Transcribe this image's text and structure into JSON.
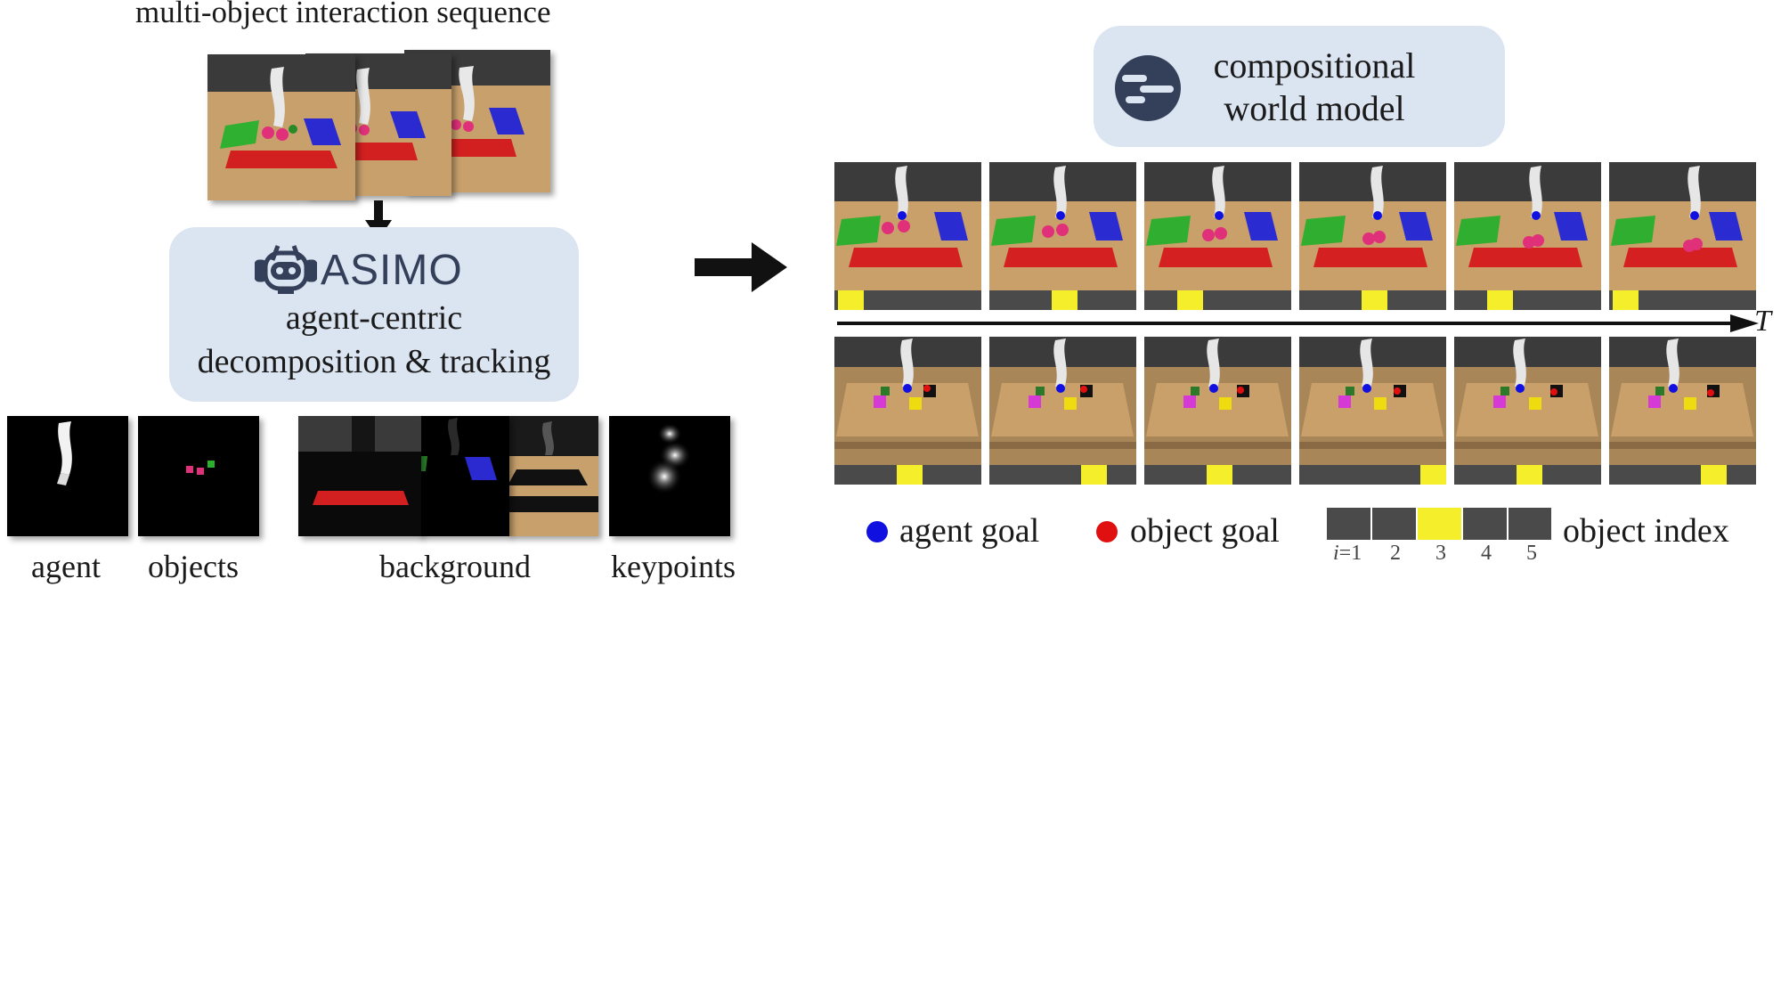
{
  "left": {
    "title": "multi-object interaction sequence",
    "method_name": "ASIMO",
    "method_desc_line1": "agent-centric",
    "method_desc_line2": "decomposition & tracking",
    "labels": {
      "agent": "agent",
      "objects": "objects",
      "background": "background",
      "keypoints": "keypoints"
    }
  },
  "right": {
    "model_line1": "compositional",
    "model_line2": "world model",
    "time_axis": "T",
    "top_row_index": [
      1,
      3,
      2,
      3,
      2,
      1
    ],
    "bottom_row_index": [
      3,
      4,
      3,
      5,
      3,
      4
    ],
    "legend": {
      "agent_goal": "agent goal",
      "object_goal": "object goal",
      "object_index": "object index",
      "index_prefix": "i",
      "index_eq": "=1",
      "indices": [
        "2",
        "3",
        "4",
        "5"
      ]
    }
  },
  "colors": {
    "panel": "#dbe4f1",
    "icon": "#34405a",
    "highlight": "#f5ee2a",
    "bar": "#4a4a4a",
    "agent_goal": "#1010e0",
    "object_goal": "#e01010"
  }
}
